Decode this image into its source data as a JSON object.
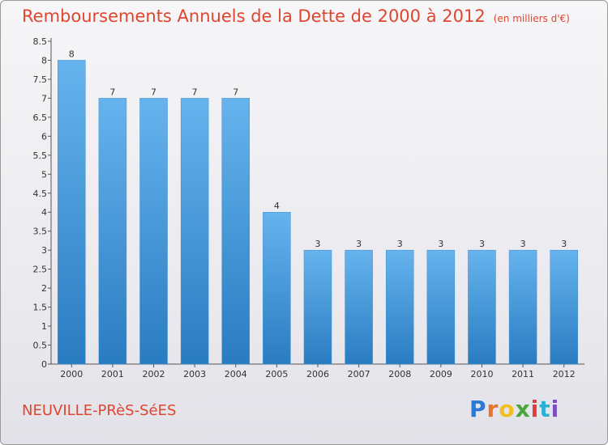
{
  "title": "Remboursements Annuels de la Dette de 2000 à 2012",
  "unit": "(en milliers d'€)",
  "commune": "NEUVILLE-PRèS-SéES",
  "logo": [
    "P",
    "r",
    "o",
    "x",
    "i",
    "t",
    "i"
  ],
  "colors": {
    "title": "#e0462f",
    "bar_top": "#66b3ee",
    "bar_bottom": "#2a7cc1",
    "logo": [
      "#2b7bd3",
      "#e8732a",
      "#f2c01e",
      "#4aa83a",
      "#e23b3b",
      "#2bb0d6",
      "#7a4fc2"
    ]
  },
  "chart_data": {
    "type": "bar",
    "categories": [
      "2000",
      "2001",
      "2002",
      "2003",
      "2004",
      "2005",
      "2006",
      "2007",
      "2008",
      "2009",
      "2010",
      "2011",
      "2012"
    ],
    "values": [
      8,
      7,
      7,
      7,
      7,
      4,
      3,
      3,
      3,
      3,
      3,
      3,
      3
    ],
    "yticks": [
      "0",
      "0.5",
      "1",
      "1.5",
      "2",
      "2.5",
      "3",
      "3.5",
      "4",
      "4.5",
      "5",
      "5.5",
      "6",
      "6.5",
      "7",
      "7.5",
      "8",
      "8.5"
    ],
    "ylim": [
      0,
      8.5
    ],
    "grid": false
  }
}
